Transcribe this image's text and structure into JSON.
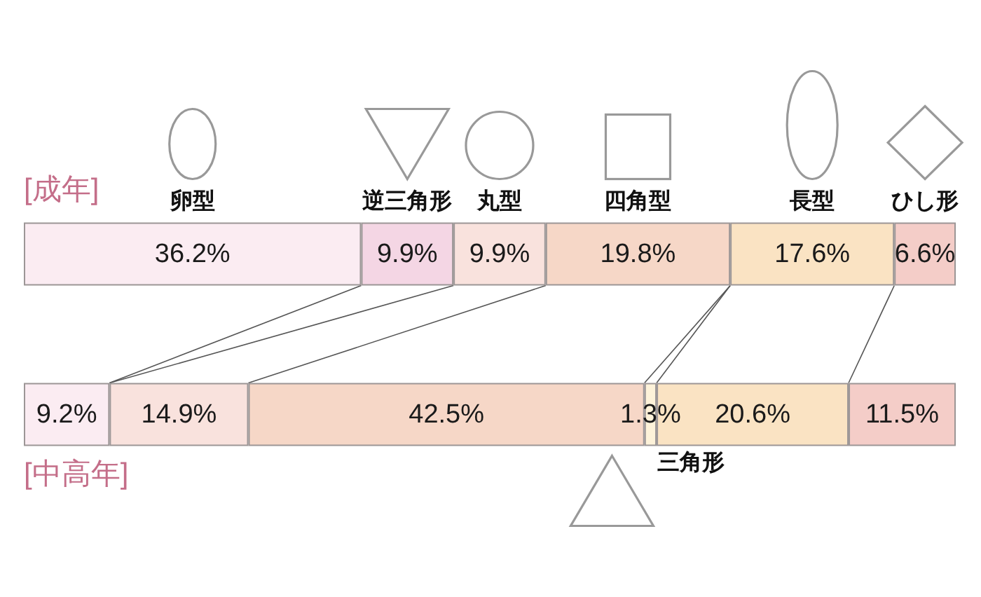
{
  "chart_data": {
    "type": "bar",
    "orientation": "horizontal",
    "stacked": true,
    "categories": [
      "[成年]",
      "[中高年]"
    ],
    "xlim": [
      0,
      100
    ],
    "tick_labels": "y",
    "grid": false,
    "legend": false,
    "series": [
      {
        "name": "卵型",
        "color": "#fbecf2",
        "values": [
          36.2,
          9.2
        ],
        "value_labels": [
          "36.2%",
          "9.2%"
        ]
      },
      {
        "name": "逆三角形",
        "color": "#f4d6e4",
        "values": [
          9.9,
          0
        ],
        "value_labels": [
          "9.9%",
          null
        ]
      },
      {
        "name": "丸型",
        "color": "#f9e2dd",
        "values": [
          9.9,
          14.9
        ],
        "value_labels": [
          "9.9%",
          "14.9%"
        ]
      },
      {
        "name": "四角型",
        "color": "#f6d7c7",
        "values": [
          19.8,
          42.5
        ],
        "value_labels": [
          "19.8%",
          "42.5%"
        ]
      },
      {
        "name": "三角形",
        "color": "#fdf2d9",
        "values": [
          0,
          1.3
        ],
        "value_labels": [
          null,
          "1.3%"
        ]
      },
      {
        "name": "長型",
        "color": "#fae3c3",
        "values": [
          17.6,
          20.6
        ],
        "value_labels": [
          "17.6%",
          "20.6%"
        ]
      },
      {
        "name": "ひし形",
        "color": "#f4cdc8",
        "values": [
          6.6,
          11.5
        ],
        "value_labels": [
          "6.6%",
          "11.5%"
        ]
      }
    ]
  }
}
